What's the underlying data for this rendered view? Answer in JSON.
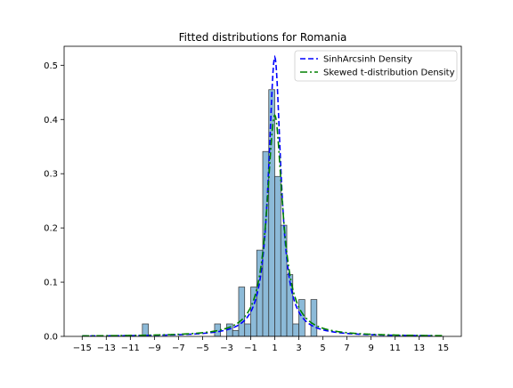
{
  "chart_data": {
    "type": "histogram",
    "title": "Fitted distributions for Romania",
    "xlabel": "",
    "ylabel": "",
    "xlim": [
      -16.5,
      16.5
    ],
    "ylim": [
      0,
      0.535
    ],
    "xticks": [
      -15,
      -13,
      -11,
      -9,
      -7,
      -5,
      -3,
      -1,
      1,
      3,
      5,
      7,
      9,
      11,
      13,
      15
    ],
    "yticks": [
      0.0,
      0.1,
      0.2,
      0.3,
      0.4,
      0.5
    ],
    "bin_width": 0.5,
    "histogram": {
      "bins": [
        {
          "x0": -10.0,
          "x1": -9.5,
          "density": 0.023
        },
        {
          "x0": -4.0,
          "x1": -3.5,
          "density": 0.023
        },
        {
          "x0": -3.0,
          "x1": -2.5,
          "density": 0.023
        },
        {
          "x0": -2.5,
          "x1": -2.0,
          "density": 0.011
        },
        {
          "x0": -2.0,
          "x1": -1.5,
          "density": 0.091
        },
        {
          "x0": -1.5,
          "x1": -1.0,
          "density": 0.023
        },
        {
          "x0": -1.0,
          "x1": -0.5,
          "density": 0.091
        },
        {
          "x0": -0.5,
          "x1": 0.0,
          "density": 0.159
        },
        {
          "x0": 0.0,
          "x1": 0.5,
          "density": 0.341
        },
        {
          "x0": 0.5,
          "x1": 1.0,
          "density": 0.455
        },
        {
          "x0": 1.0,
          "x1": 1.5,
          "density": 0.295
        },
        {
          "x0": 1.5,
          "x1": 2.0,
          "density": 0.205
        },
        {
          "x0": 2.0,
          "x1": 2.5,
          "density": 0.114
        },
        {
          "x0": 2.5,
          "x1": 3.0,
          "density": 0.023
        },
        {
          "x0": 3.0,
          "x1": 3.5,
          "density": 0.068
        },
        {
          "x0": 4.0,
          "x1": 4.5,
          "density": 0.068
        }
      ]
    },
    "series": [
      {
        "name": "SinhArcsinh Density",
        "color": "#0000ff",
        "style": "dashed",
        "model": "cauchy_like",
        "loc": 1.0,
        "scale": 0.62,
        "peak": 0.515,
        "skew": 1.0
      },
      {
        "name": "Skewed t-distribution Density",
        "color": "#008000",
        "style": "dashdot",
        "model": "cauchy_like",
        "loc": 1.0,
        "scale": 0.78,
        "peak": 0.408,
        "skew": 1.0
      }
    ],
    "legend_position": "top-right",
    "hist_color": "#7fb2d4",
    "grid": false
  }
}
